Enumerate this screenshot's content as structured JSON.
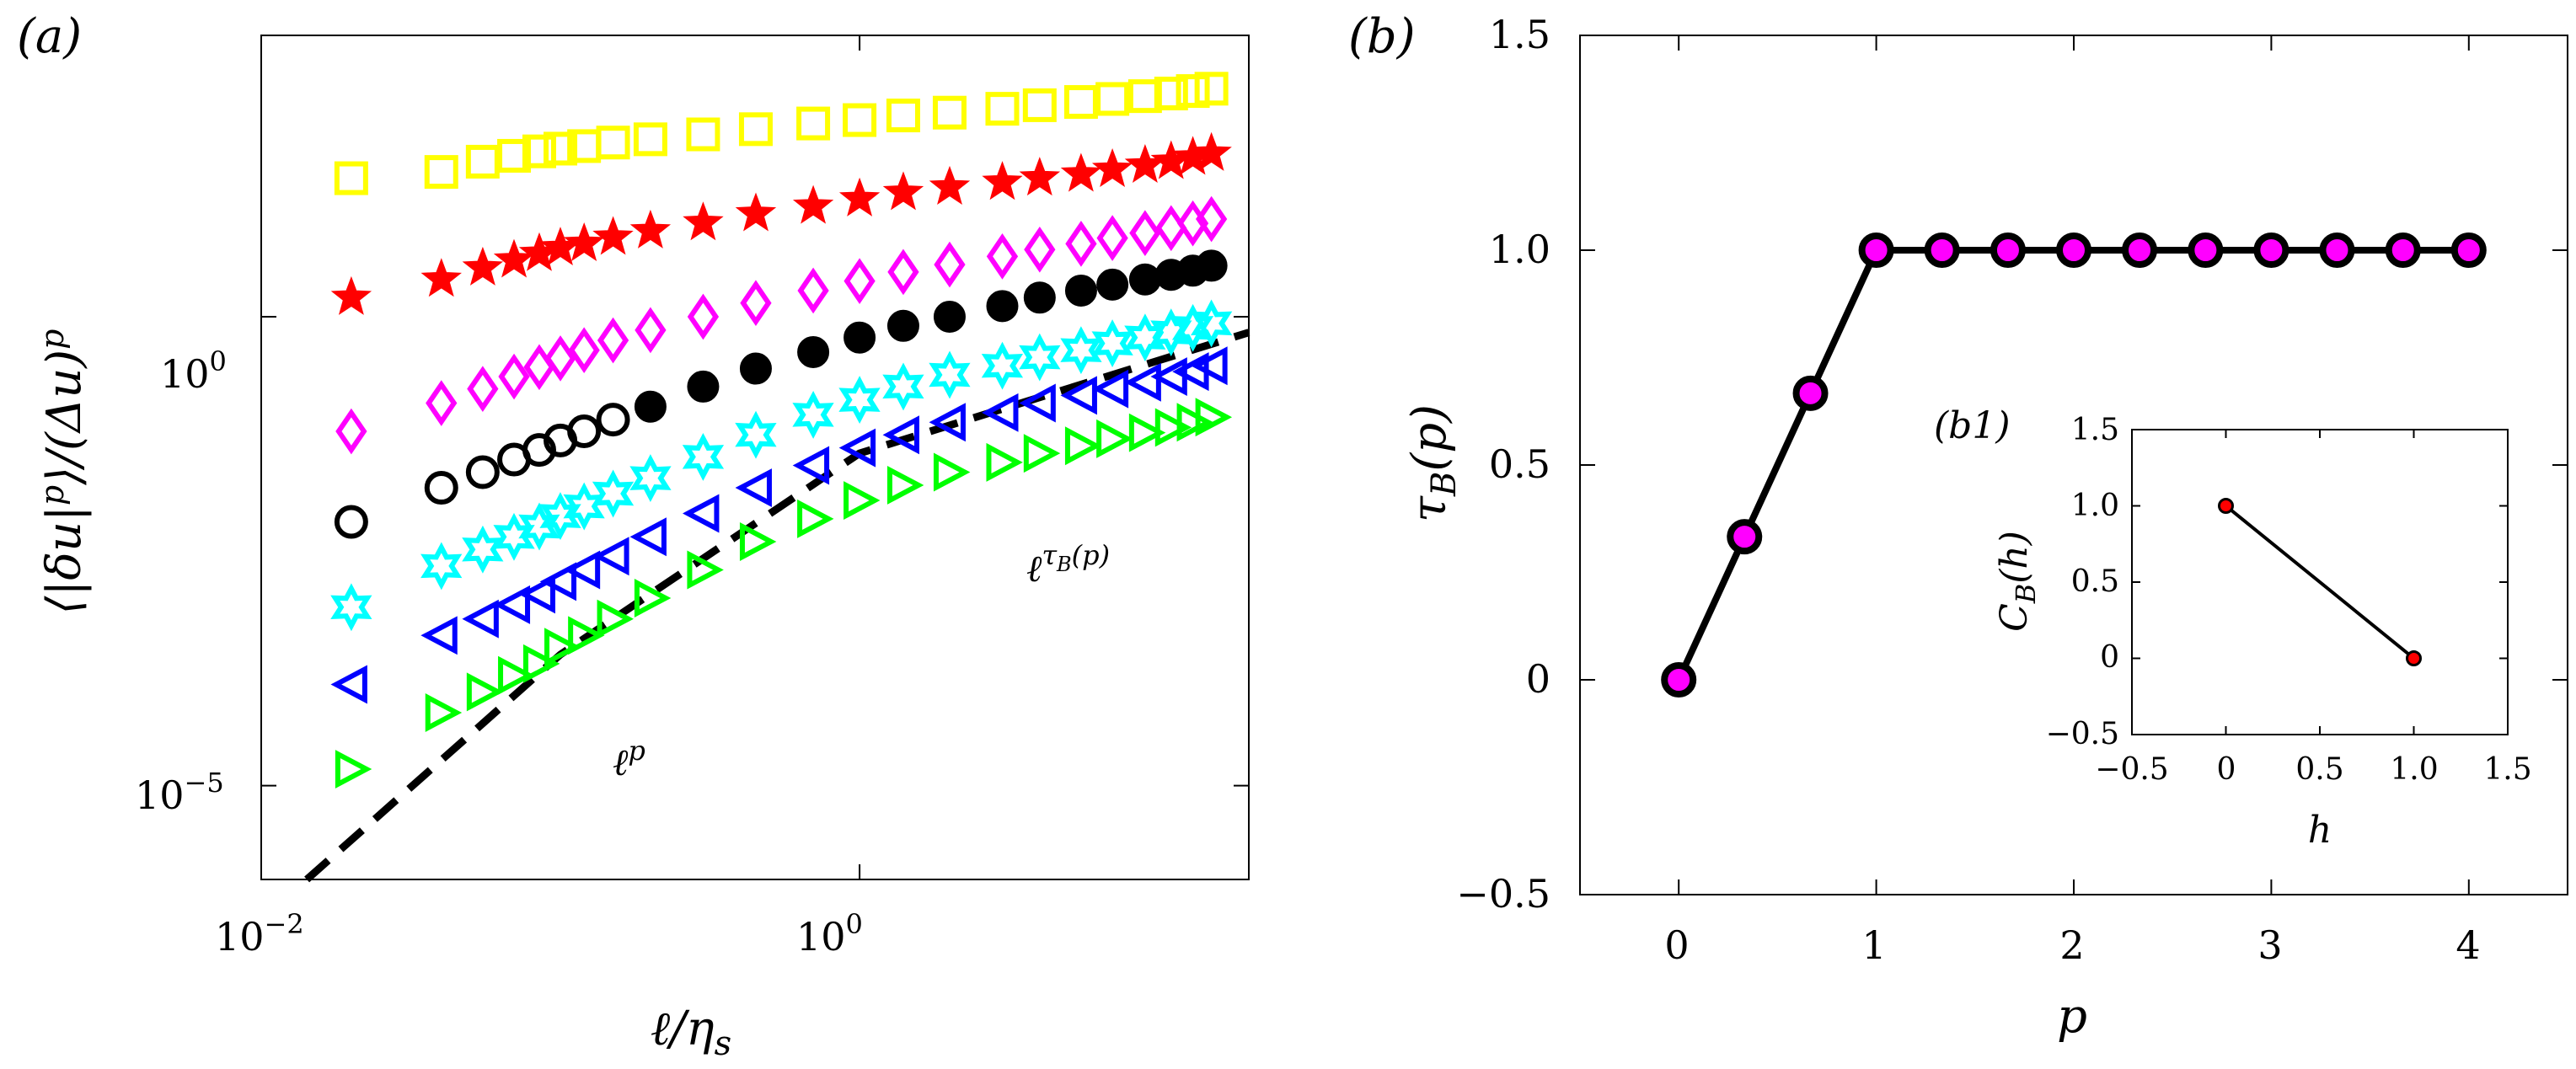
{
  "panels": {
    "a": {
      "label": "(a)",
      "xlabel": "ℓ/ηs",
      "ylabel": "⟨|δu|p⟩/(Δu)p",
      "xticks": [
        {
          "base": "10",
          "exp": "−2"
        },
        {
          "base": "10",
          "exp": "0"
        }
      ],
      "yticks": [
        {
          "base": "10",
          "exp": "0"
        },
        {
          "base": "10",
          "exp": "−5"
        }
      ],
      "annot_lp": "ℓp",
      "annot_ltau": "ℓτB(p)"
    },
    "b": {
      "label": "(b)",
      "xlabel": "p",
      "ylabel": "τB(p)",
      "xticks": [
        "0",
        "1",
        "2",
        "3",
        "4"
      ],
      "yticks": [
        "−0.5",
        "0",
        "0.5",
        "1.0",
        "1.5"
      ]
    },
    "b1": {
      "label": "(b1)",
      "xlabel": "h",
      "ylabel": "CB(h)",
      "xticks": [
        "−0.5",
        "0",
        "0.5",
        "1.0",
        "1.5"
      ],
      "yticks": [
        "−0.5",
        "0",
        "0.5",
        "1.0",
        "1.5"
      ]
    }
  },
  "chart_data": [
    {
      "type": "scatter",
      "panel": "a",
      "xscale": "log",
      "yscale": "log",
      "xlim": [
        0.01,
        20
      ],
      "ylim": [
        1e-06,
        1000
      ],
      "series": [
        {
          "marker": "square-open",
          "color": "#ffff00",
          "x": [
            0.02,
            0.04,
            0.055,
            0.07,
            0.085,
            0.1,
            0.12,
            0.15,
            0.2,
            0.3,
            0.45,
            0.7,
            1.0,
            1.4,
            2.0,
            3.0,
            4.0,
            5.5,
            7.0,
            9.0,
            11.0,
            13.0,
            15.0
          ],
          "y": [
            30,
            35,
            45,
            52,
            58,
            62,
            66,
            72,
            78,
            88,
            100,
            115,
            125,
            140,
            150,
            165,
            180,
            195,
            210,
            225,
            240,
            255,
            270
          ]
        },
        {
          "marker": "star",
          "color": "#ff0000",
          "x": [
            0.02,
            0.04,
            0.055,
            0.07,
            0.085,
            0.1,
            0.12,
            0.15,
            0.2,
            0.3,
            0.45,
            0.7,
            1.0,
            1.4,
            2.0,
            3.0,
            4.0,
            5.5,
            7.0,
            9.0,
            11.0,
            13.0,
            15.0
          ],
          "y": [
            1.6,
            2.5,
            3.3,
            4.0,
            4.7,
            5.4,
            6.0,
            7.0,
            8.2,
            10.0,
            12.5,
            15.0,
            18.0,
            21.0,
            24.0,
            27.0,
            30.0,
            33.0,
            37.0,
            41.0,
            45.0,
            50.0,
            55.0
          ]
        },
        {
          "marker": "diamond-open",
          "color": "#ff00ff",
          "x": [
            0.02,
            0.04,
            0.055,
            0.07,
            0.085,
            0.1,
            0.12,
            0.15,
            0.2,
            0.3,
            0.45,
            0.7,
            1.0,
            1.4,
            2.0,
            3.0,
            4.0,
            5.5,
            7.0,
            9.0,
            11.0,
            13.0,
            15.0
          ],
          "y": [
            0.06,
            0.12,
            0.17,
            0.23,
            0.29,
            0.36,
            0.44,
            0.56,
            0.72,
            1.0,
            1.4,
            1.9,
            2.4,
            3.0,
            3.6,
            4.4,
            5.2,
            6.0,
            6.9,
            7.8,
            8.8,
            9.9,
            11.0
          ]
        },
        {
          "marker": "circle",
          "color": "#000000",
          "x": [
            0.02,
            0.04,
            0.055,
            0.07,
            0.085,
            0.1,
            0.12,
            0.15,
            0.2,
            0.3,
            0.45,
            0.7,
            1.0,
            1.4,
            2.0,
            3.0,
            4.0,
            5.5,
            7.0,
            9.0,
            11.0,
            13.0,
            15.0
          ],
          "y": [
            0.0065,
            0.015,
            0.022,
            0.03,
            0.038,
            0.048,
            0.06,
            0.08,
            0.11,
            0.18,
            0.28,
            0.42,
            0.6,
            0.8,
            1.0,
            1.3,
            1.6,
            1.9,
            2.2,
            2.5,
            2.8,
            3.1,
            3.5
          ]
        },
        {
          "marker": "hexagram",
          "color": "#00ffff",
          "x": [
            0.02,
            0.04,
            0.055,
            0.07,
            0.085,
            0.1,
            0.12,
            0.15,
            0.2,
            0.3,
            0.45,
            0.7,
            1.0,
            1.4,
            2.0,
            3.0,
            4.0,
            5.5,
            7.0,
            9.0,
            11.0,
            13.0,
            15.0
          ],
          "y": [
            0.0008,
            0.0022,
            0.0033,
            0.0045,
            0.0058,
            0.0075,
            0.0095,
            0.013,
            0.019,
            0.032,
            0.055,
            0.09,
            0.13,
            0.18,
            0.24,
            0.3,
            0.37,
            0.44,
            0.52,
            0.6,
            0.68,
            0.76,
            0.85
          ]
        },
        {
          "marker": "triangle-left-open",
          "color": "#0000ff",
          "x": [
            0.02,
            0.04,
            0.055,
            0.07,
            0.085,
            0.1,
            0.12,
            0.15,
            0.2,
            0.3,
            0.45,
            0.7,
            1.0,
            1.4,
            2.0,
            3.0,
            4.0,
            5.5,
            7.0,
            9.0,
            11.0,
            13.0,
            15.0
          ],
          "y": [
            0.00012,
            0.0004,
            0.0006,
            0.00085,
            0.0011,
            0.0015,
            0.002,
            0.0028,
            0.0045,
            0.008,
            0.015,
            0.026,
            0.04,
            0.055,
            0.075,
            0.095,
            0.12,
            0.145,
            0.17,
            0.2,
            0.23,
            0.26,
            0.3
          ]
        },
        {
          "marker": "triangle-right-open",
          "color": "#00ff00",
          "x": [
            0.02,
            0.04,
            0.055,
            0.07,
            0.085,
            0.1,
            0.12,
            0.15,
            0.2,
            0.3,
            0.45,
            0.7,
            1.0,
            1.4,
            2.0,
            3.0,
            4.0,
            5.5,
            7.0,
            9.0,
            11.0,
            13.0,
            15.0
          ],
          "y": [
            1.5e-05,
            6e-05,
            0.0001,
            0.00015,
            0.0002,
            0.0003,
            0.0004,
            0.0006,
            0.001,
            0.002,
            0.004,
            0.007,
            0.011,
            0.016,
            0.022,
            0.028,
            0.035,
            0.042,
            0.05,
            0.058,
            0.066,
            0.075,
            0.085
          ]
        }
      ],
      "reference_lines": [
        {
          "name": "ℓp",
          "style": "dashed",
          "color": "#000000",
          "x": [
            0.0142,
            0.1,
            1.0,
            20.0
          ],
          "y": [
            1e-06,
            0.00025,
            0.035,
            0.68
          ]
        }
      ]
    },
    {
      "type": "line",
      "panel": "b",
      "xlim": [
        -0.5,
        4.5
      ],
      "ylim": [
        -0.5,
        1.5
      ],
      "marker_fill": "#ff00ff",
      "line_color": "#000000",
      "x": [
        0,
        0.333,
        0.667,
        1.0,
        1.333,
        1.667,
        2.0,
        2.333,
        2.667,
        3.0,
        3.333,
        3.667,
        4.0
      ],
      "y": [
        0,
        0.333,
        0.667,
        1.0,
        1.0,
        1.0,
        1.0,
        1.0,
        1.0,
        1.0,
        1.0,
        1.0,
        1.0
      ]
    },
    {
      "type": "line",
      "panel": "b1",
      "xlim": [
        -0.5,
        1.5
      ],
      "ylim": [
        -0.5,
        1.5
      ],
      "marker_fill": "#ff0000",
      "line_color": "#000000",
      "x": [
        0,
        1
      ],
      "y": [
        1,
        0
      ]
    }
  ]
}
